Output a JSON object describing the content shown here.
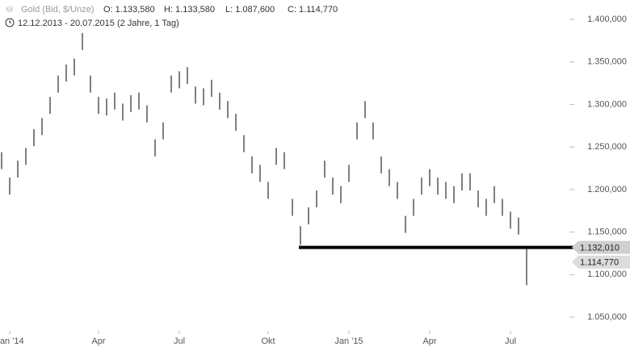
{
  "chart_data": {
    "type": "hlbar",
    "title": "Gold (Bid, $/Unze)",
    "ohlc_labels": [
      "O: 1.133,580",
      "H: 1.133,580",
      "L: 1.087,600",
      "C: 1.114,770"
    ],
    "subtitle": "12.12.2013 - 20.07.2015 (2 Jahre, 1 Tag)",
    "categories": [
      null,
      "Jan '14",
      null,
      null,
      null,
      null,
      null,
      null,
      null,
      null,
      null,
      null,
      "Apr",
      null,
      null,
      null,
      null,
      null,
      null,
      null,
      null,
      null,
      "Jul",
      null,
      null,
      null,
      null,
      null,
      null,
      null,
      null,
      null,
      null,
      "Okt",
      null,
      null,
      null,
      null,
      null,
      null,
      null,
      null,
      null,
      "Jan '15",
      null,
      null,
      null,
      null,
      null,
      null,
      null,
      null,
      null,
      "Apr",
      null,
      null,
      null,
      null,
      null,
      null,
      null,
      null,
      null,
      "Jul",
      null,
      null
    ],
    "high": [
      1244,
      1214,
      1234,
      1249,
      1271,
      1284,
      1309,
      1334,
      1347,
      1354,
      1384,
      1334,
      1309,
      1307,
      1314,
      1301,
      1311,
      1314,
      1299,
      1259,
      1279,
      1334,
      1339,
      1344,
      1321,
      1319,
      1329,
      1314,
      1304,
      1289,
      1264,
      1239,
      1229,
      1209,
      1249,
      1244,
      1189,
      1157,
      1179,
      1199,
      1234,
      1214,
      1204,
      1229,
      1279,
      1304,
      1279,
      1239,
      1224,
      1209,
      1169,
      1189,
      1214,
      1224,
      1214,
      1209,
      1204,
      1219,
      1219,
      1199,
      1189,
      1204,
      1189,
      1174,
      1167,
      1133.58
    ],
    "low": [
      1224,
      1194,
      1214,
      1229,
      1251,
      1264,
      1289,
      1314,
      1327,
      1334,
      1364,
      1314,
      1289,
      1287,
      1294,
      1281,
      1291,
      1294,
      1279,
      1239,
      1259,
      1314,
      1319,
      1324,
      1301,
      1299,
      1309,
      1294,
      1284,
      1269,
      1244,
      1219,
      1209,
      1189,
      1229,
      1224,
      1169,
      1135,
      1159,
      1179,
      1214,
      1194,
      1184,
      1209,
      1259,
      1284,
      1259,
      1219,
      1204,
      1189,
      1149,
      1169,
      1194,
      1204,
      1194,
      1189,
      1184,
      1199,
      1199,
      1179,
      1169,
      1184,
      1169,
      1154,
      1147,
      1087.6
    ],
    "color": "#555555",
    "ylim": [
      1010.2,
      1422.8
    ],
    "yticks": [
      {
        "value": 1050,
        "label": "1.050,000"
      },
      {
        "value": 1100,
        "label": "1.100,000"
      },
      {
        "value": 1150,
        "label": "1.150,000"
      },
      {
        "value": 1200,
        "label": "1.200,000"
      },
      {
        "value": 1250,
        "label": "1.250,000"
      },
      {
        "value": 1300,
        "label": "1.300,000"
      },
      {
        "value": 1350,
        "label": "1.350,000"
      },
      {
        "value": 1400,
        "label": "1.400,000"
      }
    ],
    "support": {
      "value": 1132.01,
      "label": "1.132,010"
    },
    "last": {
      "value": 1114.77,
      "label": "1.114,770"
    }
  }
}
